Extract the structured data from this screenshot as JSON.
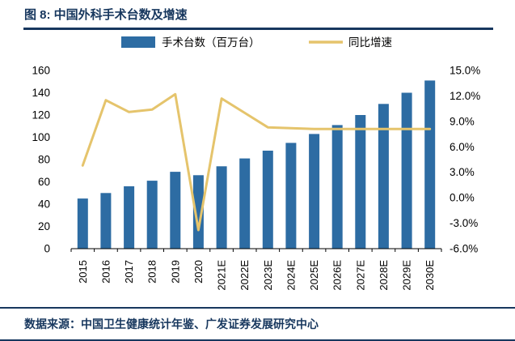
{
  "header": {
    "title": "图 8: 中国外科手术台数及增速"
  },
  "footer": {
    "source": "数据来源：中国卫生健康统计年鉴、广发证券发展研究中心"
  },
  "colors": {
    "accent": "#17375e",
    "bar": "#2d6ca3",
    "line": "#e5c46c",
    "axis_text": "#000000"
  },
  "chart_data": {
    "type": "bar",
    "title": "中国外科手术台数及增速",
    "categories": [
      "2015",
      "2016",
      "2017",
      "2018",
      "2019",
      "2020",
      "2021E",
      "2022E",
      "2023E",
      "2024E",
      "2025E",
      "2026E",
      "2027E",
      "2028E",
      "2029E",
      "2030E"
    ],
    "series": [
      {
        "name": "手术台数（百万台）",
        "type": "bar",
        "axis": "left",
        "color": "#2d6ca3",
        "values": [
          45,
          50,
          56,
          61,
          69,
          66,
          74,
          81,
          88,
          95,
          103,
          111,
          120,
          130,
          140,
          151
        ]
      },
      {
        "name": "同比增速",
        "type": "line",
        "axis": "right",
        "color": "#e5c46c",
        "values": [
          3.8,
          11.5,
          10.1,
          10.4,
          12.2,
          -3.8,
          11.7,
          10.0,
          8.3,
          8.2,
          8.1,
          8.1,
          8.1,
          8.1,
          8.1,
          8.1
        ]
      }
    ],
    "left_axis": {
      "min": 0,
      "max": 160,
      "ticks": [
        160,
        140,
        120,
        100,
        80,
        60,
        40,
        20,
        0
      ]
    },
    "right_axis": {
      "min": -6,
      "max": 15,
      "ticks": [
        "15.0%",
        "12.0%",
        "9.0%",
        "6.0%",
        "3.0%",
        "0.0%",
        "-3.0%",
        "-6.0%"
      ]
    },
    "legend_position": "top",
    "grid": false
  }
}
